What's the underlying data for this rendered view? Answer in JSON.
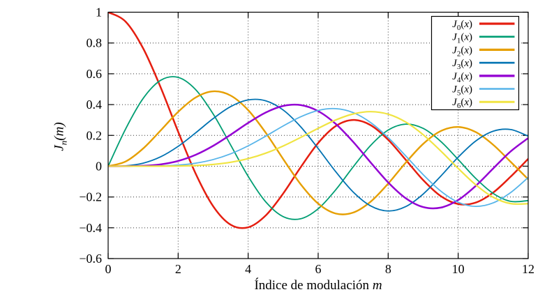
{
  "figure": {
    "background": "#ffffff",
    "border_color": "#000000",
    "grid_color": "#333333",
    "text_color": "#000000"
  },
  "axes": {
    "xlabel": {
      "text": "Índice de modulación",
      "var": "m"
    },
    "ylabel": {
      "func": "J",
      "sub": "n",
      "open": "(",
      "var": "m",
      "close": ")"
    },
    "x_ticks": {
      "values": [
        0,
        2,
        4,
        6,
        8,
        10,
        12
      ],
      "labels": [
        "0",
        "2",
        "4",
        "6",
        "8",
        "10",
        "12"
      ]
    },
    "y_ticks": {
      "values": [
        1,
        0.8,
        0.6,
        0.4,
        0.2,
        0,
        -0.2,
        -0.4,
        -0.6
      ],
      "labels": [
        "1",
        "0.8",
        "0.6",
        "0.4",
        "0.2",
        "0",
        "−0.2",
        "−0.4",
        "−0.6"
      ]
    }
  },
  "chart_data": {
    "type": "line",
    "title": "",
    "xlabel": "Índice de modulación m",
    "ylabel": "J_n(m)",
    "xlim": [
      0,
      12
    ],
    "ylim": [
      -0.6,
      1
    ],
    "grid": "dotted",
    "legend_position": "top-right-inside",
    "x": [
      0,
      0.5,
      1,
      1.5,
      2,
      2.5,
      3,
      3.5,
      4,
      4.5,
      5,
      5.5,
      6,
      6.5,
      7,
      7.5,
      8,
      8.5,
      9,
      9.5,
      10,
      10.5,
      11,
      11.5,
      12
    ],
    "series": [
      {
        "label": "J_0(x)",
        "color": "#e51e10",
        "width": 2.5,
        "values": [
          1,
          0.9385,
          0.7652,
          0.5118,
          0.2239,
          -0.0484,
          -0.2601,
          -0.3801,
          -0.3971,
          -0.3205,
          -0.1776,
          -0.0068,
          0.1506,
          0.2601,
          0.3001,
          0.2663,
          0.1717,
          0.0419,
          -0.0903,
          -0.1939,
          -0.2459,
          -0.2366,
          -0.1712,
          -0.0677,
          0.0477
        ]
      },
      {
        "label": "J_1(x)",
        "color": "#009e73",
        "width": 1.8,
        "values": [
          0,
          0.2423,
          0.4401,
          0.5579,
          0.5767,
          0.4971,
          0.3391,
          0.1374,
          -0.066,
          -0.2311,
          -0.3276,
          -0.3414,
          -0.2767,
          -0.1538,
          -0.0047,
          0.1352,
          0.2346,
          0.2731,
          0.2453,
          0.1613,
          0.0435,
          -0.0789,
          -0.1768,
          -0.2284,
          -0.2234
        ]
      },
      {
        "label": "J_2(x)",
        "color": "#e69f00",
        "width": 2.4,
        "values": [
          0,
          0.0306,
          0.1149,
          0.2321,
          0.3528,
          0.4461,
          0.4861,
          0.4586,
          0.3641,
          0.2178,
          0.0466,
          -0.1173,
          -0.2429,
          -0.3074,
          -0.3014,
          -0.2303,
          -0.113,
          0.0223,
          0.1448,
          0.2279,
          0.2546,
          0.2216,
          0.139,
          0.028,
          -0.0849
        ]
      },
      {
        "label": "J_3(x)",
        "color": "#0072b2",
        "width": 1.8,
        "values": [
          0,
          0.0026,
          0.0196,
          0.061,
          0.1289,
          0.2166,
          0.3091,
          0.3868,
          0.4302,
          0.4247,
          0.3648,
          0.2561,
          0.1148,
          -0.0353,
          -0.1676,
          -0.2581,
          -0.2911,
          -0.2626,
          -0.1809,
          -0.0653,
          0.0584,
          0.1633,
          0.2273,
          0.2381,
          0.1951
        ]
      },
      {
        "label": "J_4(x)",
        "color": "#9400d3",
        "width": 2.5,
        "values": [
          0,
          0.0002,
          0.0025,
          0.0118,
          0.034,
          0.0738,
          0.132,
          0.2044,
          0.2811,
          0.3484,
          0.3912,
          0.3967,
          0.3576,
          0.2748,
          0.1578,
          0.0238,
          -0.1054,
          -0.2078,
          -0.2655,
          -0.2691,
          -0.2196,
          -0.1283,
          -0.015,
          0.0962,
          0.1825
        ]
      },
      {
        "label": "J_5(x)",
        "color": "#56b4e9",
        "width": 1.8,
        "values": [
          0,
          0,
          0.0002,
          0.0018,
          0.007,
          0.0195,
          0.043,
          0.0804,
          0.1321,
          0.1947,
          0.2611,
          0.3209,
          0.3621,
          0.3736,
          0.3479,
          0.2833,
          0.1858,
          0.0671,
          -0.055,
          -0.1613,
          -0.2341,
          -0.2611,
          -0.2383,
          -0.1712,
          -0.0735
        ]
      },
      {
        "label": "J_6(x)",
        "color": "#f0e442",
        "width": 2.2,
        "values": [
          0,
          0,
          0,
          0.0002,
          0.0012,
          0.0042,
          0.0114,
          0.0254,
          0.0491,
          0.0843,
          0.131,
          0.1868,
          0.2458,
          0.2999,
          0.3392,
          0.3541,
          0.3376,
          0.2867,
          0.2043,
          0.0993,
          -0.0145,
          -0.1204,
          -0.2016,
          -0.243,
          -0.2437
        ]
      }
    ]
  }
}
